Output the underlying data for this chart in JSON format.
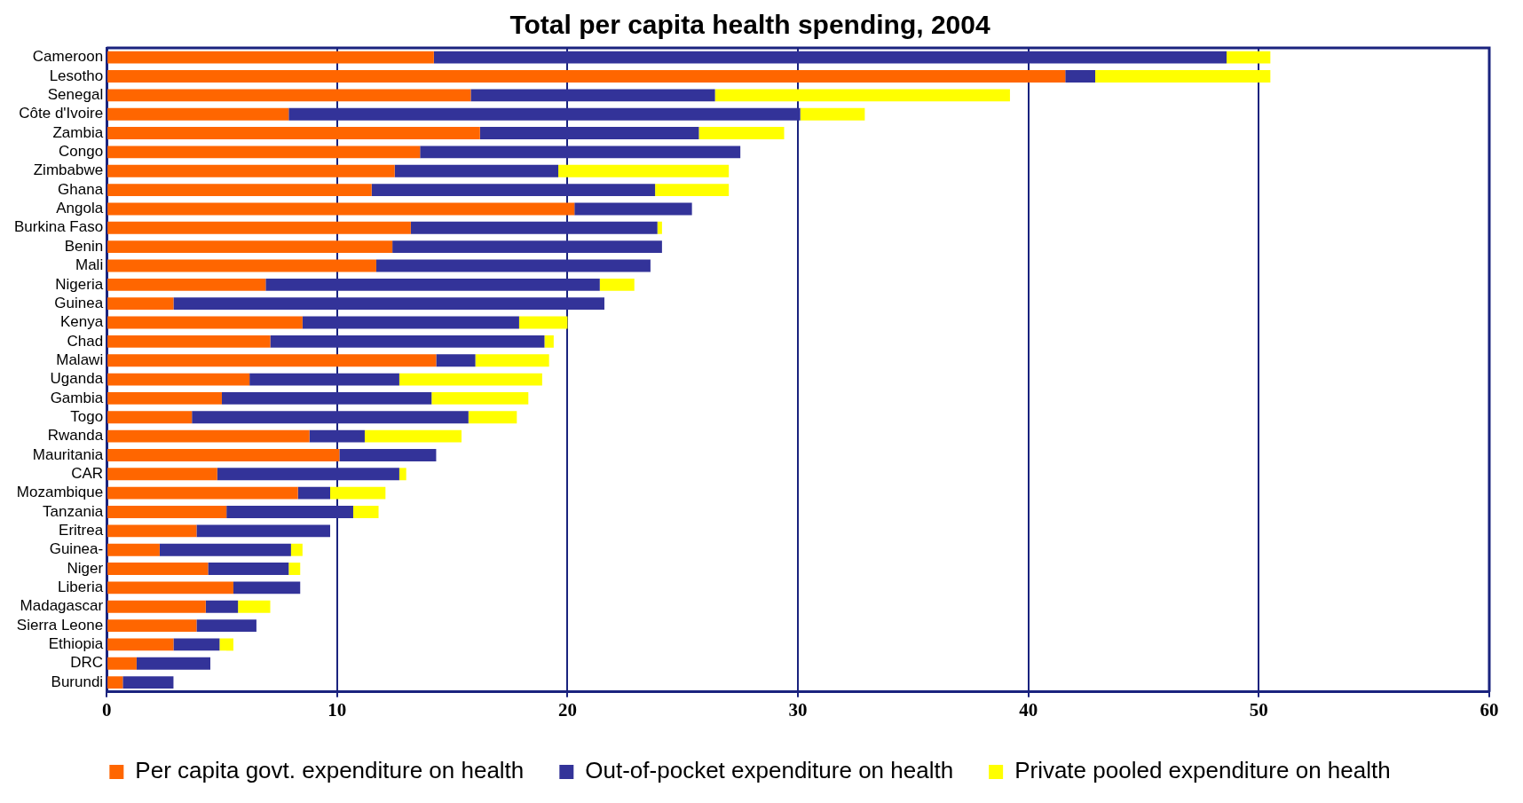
{
  "chart_data": {
    "type": "bar",
    "title": "Total per capita health spending, 2004",
    "orientation": "horizontal",
    "stacked": true,
    "categories": [
      "Cameroon",
      "Lesotho",
      "Senegal",
      "Côte d'Ivoire",
      "Zambia",
      "Congo",
      "Zimbabwe",
      "Ghana",
      "Angola",
      "Burkina Faso",
      "Benin",
      "Mali",
      "Nigeria",
      "Guinea",
      "Kenya",
      "Chad",
      "Malawi",
      "Uganda",
      "Gambia",
      "Togo",
      "Rwanda",
      "Mauritania",
      "CAR",
      "Mozambique",
      "Tanzania",
      "Eritrea",
      "Guinea-",
      "Niger",
      "Liberia",
      "Madagascar",
      "Sierra Leone",
      "Ethiopia",
      "DRC",
      "Burundi"
    ],
    "series": [
      {
        "name": "Per capita govt. expenditure on health",
        "color": "#ff6600",
        "values": [
          14.2,
          41.6,
          15.8,
          7.9,
          16.2,
          13.6,
          12.5,
          11.5,
          20.3,
          13.2,
          12.4,
          11.7,
          6.9,
          2.9,
          8.5,
          7.1,
          14.3,
          6.2,
          5.0,
          3.7,
          8.8,
          10.1,
          4.8,
          8.3,
          5.2,
          3.9,
          2.3,
          4.4,
          5.5,
          4.3,
          3.9,
          2.9,
          1.3,
          0.7
        ]
      },
      {
        "name": "Out-of-pocket expenditure on health",
        "color": "#333399",
        "values": [
          34.4,
          1.3,
          10.6,
          22.2,
          9.5,
          13.9,
          7.1,
          12.3,
          5.1,
          10.7,
          11.7,
          11.9,
          14.5,
          18.7,
          9.4,
          11.9,
          1.7,
          6.5,
          9.1,
          12.0,
          2.4,
          4.2,
          7.9,
          1.4,
          5.5,
          5.8,
          5.7,
          3.5,
          2.9,
          1.4,
          2.6,
          2.0,
          3.2,
          2.2
        ]
      },
      {
        "name": "Private pooled expenditure on health",
        "color": "#ffff00",
        "values": [
          1.9,
          7.6,
          12.8,
          2.8,
          3.7,
          null,
          7.4,
          3.2,
          null,
          0.2,
          null,
          null,
          1.5,
          null,
          2.1,
          0.4,
          3.2,
          6.2,
          4.2,
          2.1,
          4.2,
          null,
          0.3,
          2.4,
          1.1,
          null,
          0.5,
          0.5,
          null,
          1.4,
          null,
          0.6,
          null,
          null
        ]
      }
    ],
    "xlim": [
      0,
      60
    ],
    "xticks": [
      0,
      10,
      20,
      30,
      40,
      50,
      60
    ],
    "grid": "x",
    "legend": "bottom"
  }
}
